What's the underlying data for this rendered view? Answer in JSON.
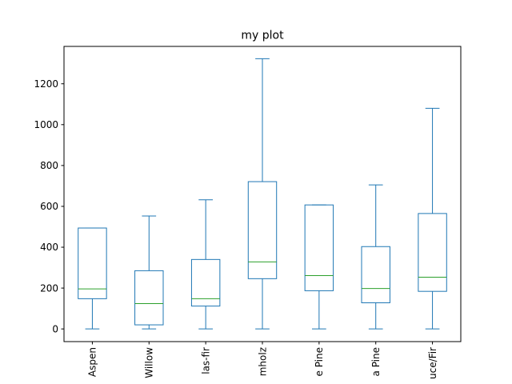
{
  "chart_data": {
    "type": "box",
    "title": "my plot",
    "xlabel": "",
    "ylabel": "",
    "ylim": [
      -62,
      1383
    ],
    "yticks": [
      0,
      200,
      400,
      600,
      800,
      1000,
      1200
    ],
    "grid": false,
    "legend": "none",
    "box_color": "#1f77b4",
    "median_color": "#2ca02c",
    "categories": [
      "Aspen",
      "Willow",
      "las-fir",
      "mholz",
      "e Pine",
      "a Pine",
      "uce/Fir"
    ],
    "boxes": [
      {
        "whislo": 0,
        "q1": 148,
        "med": 196,
        "q3": 494,
        "whishi": 494
      },
      {
        "whislo": 0,
        "q1": 20,
        "med": 124,
        "q3": 285,
        "whishi": 553
      },
      {
        "whislo": 0,
        "q1": 112,
        "med": 148,
        "q3": 340,
        "whishi": 632
      },
      {
        "whislo": 0,
        "q1": 246,
        "med": 328,
        "q3": 721,
        "whishi": 1323
      },
      {
        "whislo": 0,
        "q1": 187,
        "med": 261,
        "q3": 607,
        "whishi": 607
      },
      {
        "whislo": 0,
        "q1": 128,
        "med": 198,
        "q3": 403,
        "whishi": 705
      },
      {
        "whislo": 0,
        "q1": 184,
        "med": 253,
        "q3": 565,
        "whishi": 1080
      }
    ]
  }
}
